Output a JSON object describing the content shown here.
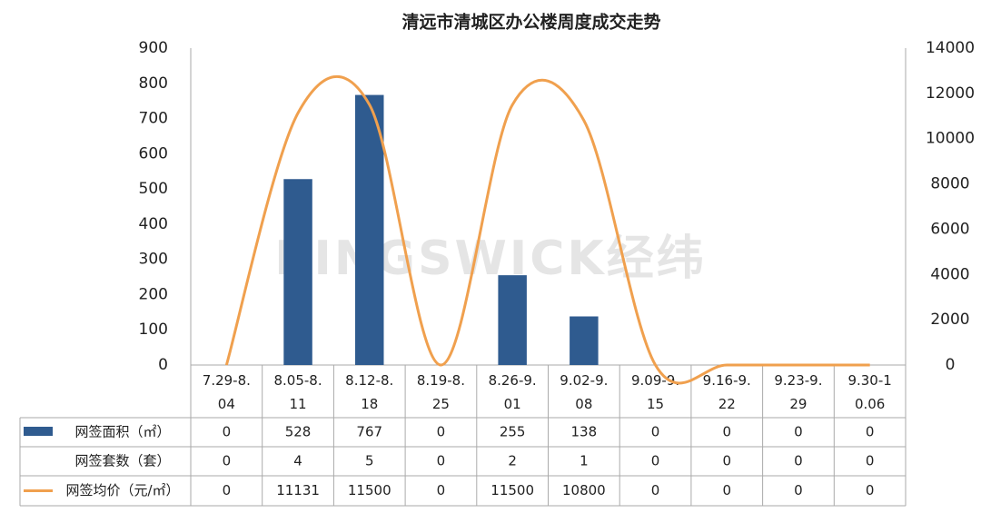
{
  "chart_data": {
    "type": "combo",
    "title": "清远市清城区办公楼周度成交走势",
    "watermark": "KINGSWICK经纬",
    "categories": [
      "7.29-8.04",
      "8.05-8.11",
      "8.12-8.18",
      "8.19-8.25",
      "8.26-9.01",
      "9.02-9.08",
      "9.09-9.15",
      "9.16-9.22",
      "9.23-9.29",
      "9.30-10.06"
    ],
    "series": [
      {
        "name": "网签面积（㎡）",
        "type": "bar",
        "color": "#2f5b8f",
        "values": [
          0,
          528,
          767,
          0,
          255,
          138,
          0,
          0,
          0,
          0
        ]
      },
      {
        "name": "网签套数（套）",
        "type": "table",
        "values": [
          0,
          4,
          5,
          0,
          2,
          1,
          0,
          0,
          0,
          0
        ]
      },
      {
        "name": "网签均价（元/㎡）",
        "type": "line",
        "axis": "y2",
        "color": "#f0a04e",
        "values": [
          0,
          11131,
          11500,
          0,
          11500,
          10800,
          0,
          0,
          0,
          0
        ]
      }
    ],
    "ylim": [
      0,
      900
    ],
    "yticks": [
      0,
      100,
      200,
      300,
      400,
      500,
      600,
      700,
      800,
      900
    ],
    "y2lim": [
      0,
      14000
    ],
    "y2ticks": [
      0,
      2000,
      4000,
      6000,
      8000,
      10000,
      12000,
      14000
    ]
  }
}
